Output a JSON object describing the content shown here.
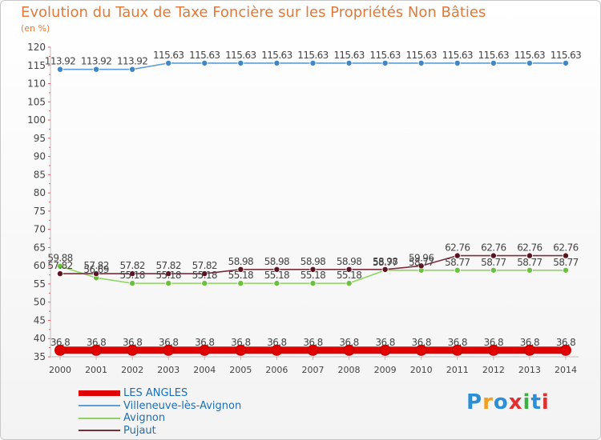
{
  "page": {
    "title": "Evolution du Taux de Taxe Foncière sur les Propriétés Non Bâties",
    "unit_label": "(en %)",
    "logo_text": "Proxiti",
    "logo_colors": [
      "#2a8fd6",
      "#f0a020",
      "#2a8fd6",
      "#e03030",
      "#3cb043",
      "#2a8fd6",
      "#e03030"
    ]
  },
  "chart_data": {
    "type": "line",
    "x": [
      "2000",
      "2001",
      "2002",
      "2003",
      "2004",
      "2005",
      "2006",
      "2007",
      "2008",
      "2009",
      "2010",
      "2011",
      "2012",
      "2013",
      "2014"
    ],
    "yticks": [
      35,
      40,
      45,
      50,
      55,
      60,
      65,
      70,
      75,
      80,
      85,
      90,
      95,
      100,
      105,
      110,
      115,
      120
    ],
    "ylim": [
      35,
      120
    ],
    "grid": false,
    "legend_position": "bottom-left",
    "series": [
      {
        "name": "LES ANGLES",
        "color": "#e00000",
        "marker_color": "#e00000",
        "values": [
          36.8,
          36.8,
          36.8,
          36.8,
          36.8,
          36.8,
          36.8,
          36.8,
          36.8,
          36.8,
          36.8,
          36.8,
          36.8,
          36.8,
          36.8
        ],
        "labels": [
          "36.8",
          "36.8",
          "36.8",
          "36.8",
          "36.8",
          "36.8",
          "36.8",
          "36.8",
          "36.8",
          "36.8",
          "36.8",
          "36.8",
          "36.8",
          "36.8",
          "36.8"
        ]
      },
      {
        "name": "Villeneuve-lès-Avignon",
        "color": "#5b9fd6",
        "marker_color": "#3f87c4",
        "values": [
          113.92,
          113.92,
          113.92,
          115.63,
          115.63,
          115.63,
          115.63,
          115.63,
          115.63,
          115.63,
          115.63,
          115.63,
          115.63,
          115.63,
          115.63
        ],
        "labels": [
          "113.92",
          "113.92",
          "113.92",
          "115.63",
          "115.63",
          "115.63",
          "115.63",
          "115.63",
          "115.63",
          "115.63",
          "115.63",
          "115.63",
          "115.63",
          "115.63",
          "115.63"
        ]
      },
      {
        "name": "Avignon",
        "color": "#8fd460",
        "marker_color": "#6cc040",
        "values": [
          59.88,
          56.69,
          55.18,
          55.18,
          55.18,
          55.18,
          55.18,
          55.18,
          55.18,
          58.77,
          58.77,
          58.77,
          58.77,
          58.77,
          58.77
        ],
        "labels": [
          "59.88",
          "56.69",
          "55.18",
          "55.18",
          "55.18",
          "55.18",
          "55.18",
          "55.18",
          "55.18",
          "58.77",
          "58.77",
          "58.77",
          "58.77",
          "58.77",
          "58.77"
        ]
      },
      {
        "name": "Pujaut",
        "color": "#7a2d3a",
        "marker_color": "#5c1520",
        "values": [
          57.82,
          57.82,
          57.82,
          57.82,
          57.82,
          58.98,
          58.98,
          58.98,
          58.98,
          58.98,
          59.96,
          62.76,
          62.76,
          62.76,
          62.76
        ],
        "labels": [
          "57.82",
          "57.82",
          "57.82",
          "57.82",
          "57.82",
          "58.98",
          "58.98",
          "58.98",
          "58.98",
          "58.98",
          "59.96",
          "62.76",
          "62.76",
          "62.76",
          "62.76"
        ]
      }
    ]
  }
}
